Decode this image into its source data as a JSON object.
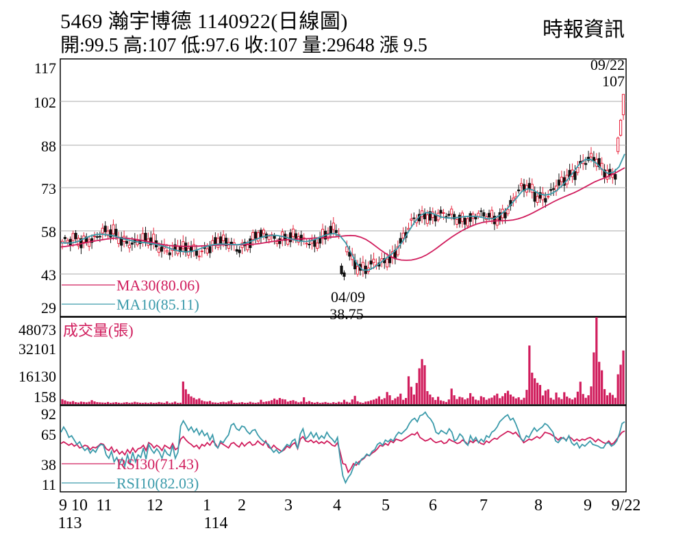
{
  "header": {
    "title": "5469  瀚宇博德 1140922(日線圖)",
    "stats": "開:99.5 高:107 低:97.6 收:107 量:29648 漲 9.5",
    "source": "時報資訊"
  },
  "colors": {
    "up": "#e8203a",
    "down": "#111111",
    "ma30": "#d01c5c",
    "ma10": "#3a9aaa",
    "volume": "#d01c5c",
    "rsi30": "#d01c5c",
    "rsi10": "#3a9aaa",
    "grid": "#aaaaaa"
  },
  "chart_data": [
    {
      "id": "price",
      "type": "candlestick",
      "y_ticks": [
        "117",
        "102",
        "88",
        "73",
        "58",
        "43",
        "29"
      ],
      "ylim": [
        29,
        117
      ],
      "grid": true,
      "legend": [
        {
          "label": "MA30(80.06)",
          "color": "#d01c5c"
        },
        {
          "label": "MA10(85.11)",
          "color": "#3a9aaa"
        }
      ],
      "annotations": [
        {
          "date": "09/22",
          "value": "107",
          "type": "high"
        },
        {
          "date": "04/09",
          "value": "38.75",
          "type": "low"
        }
      ],
      "series": [
        {
          "name": "MA30",
          "values": [
            51,
            51.2,
            51.5,
            51.8,
            52.2,
            52.6,
            53,
            53.3,
            53.6,
            53.9,
            54.1,
            54.3,
            54.3,
            54.2,
            54,
            53.7,
            53.4,
            53,
            52.6,
            52.2,
            51.9,
            51.6,
            51.4,
            51.3,
            51.2,
            51.2,
            51.3,
            51.3,
            51.4,
            51.5,
            51.6,
            51.7,
            51.8,
            51.8,
            51.8,
            51.8,
            51.8,
            51.9,
            52,
            52.2,
            52.5,
            52.8,
            53.1,
            53.4,
            53.6,
            53.7,
            53.8,
            53.9,
            54,
            54.1,
            54.3,
            54.4,
            54.5,
            54.6,
            54.7,
            54.9,
            55.1,
            55.2,
            55.1,
            54.6,
            53.8,
            52.6,
            51.2,
            49.8,
            48.5,
            47.4,
            46.6,
            46.2,
            46.1,
            46.2,
            46.6,
            47.2,
            48.1,
            49.3,
            50.6,
            52,
            53.4,
            54.7,
            55.9,
            57,
            58,
            58.8,
            59.5,
            60,
            60.3,
            60.5,
            60.6,
            60.6,
            60.7,
            60.9,
            61.3,
            61.9,
            62.7,
            63.6,
            64.6,
            65.6,
            66.6,
            67.6,
            68.5,
            69.3,
            70.1,
            70.9,
            71.8,
            72.8,
            73.8,
            74.8,
            75.6,
            76.3,
            77.1,
            78,
            79,
            80.06
          ]
        },
        {
          "name": "MA10",
          "values": [
            52.5,
            52.4,
            52.5,
            53,
            54,
            54.9,
            55.5,
            55.7,
            55.5,
            55.2,
            54.6,
            54,
            53.5,
            53,
            52.7,
            52.5,
            52.2,
            51.8,
            51.3,
            50.6,
            49.9,
            49.4,
            49.2,
            49.4,
            50,
            50.8,
            51.5,
            51.9,
            52.1,
            52,
            51.9,
            51.8,
            52.1,
            52.8,
            53.6,
            54.4,
            55,
            55.3,
            55.2,
            54.8,
            54.2,
            53.6,
            53.1,
            53,
            53.3,
            54.1,
            55,
            55.7,
            55.9,
            55.1,
            52.5,
            48.5,
            44.8,
            42.5,
            42.5,
            43.5,
            45,
            46.7,
            48.2,
            50.3,
            53,
            56.5,
            59.8,
            62.4,
            63.6,
            63.5,
            62.6,
            61.9,
            61.6,
            61.6,
            61.9,
            62.2,
            62.3,
            62.2,
            61.8,
            61.3,
            61.4,
            62.5,
            64.3,
            66.5,
            69,
            71.5,
            72.4,
            71.8,
            70.5,
            70,
            70.4,
            71.6,
            73.5,
            75.8,
            78.5,
            81.3,
            83,
            83.1,
            81.8,
            79.5,
            78,
            78.4,
            80.4,
            85.11
          ]
        }
      ]
    },
    {
      "id": "volume",
      "type": "bar",
      "title": "成交量(張)",
      "y_ticks": [
        "48073",
        "32101",
        "16130",
        "158"
      ],
      "ylim": [
        0,
        48073
      ],
      "values": [
        2700,
        2100,
        1500,
        1300,
        1700,
        1100,
        900,
        1400,
        1200,
        1000,
        1300,
        2200,
        1500,
        1100,
        1000,
        900,
        800,
        1200,
        700,
        900,
        1100,
        800,
        600,
        900,
        1100,
        700,
        900,
        1300,
        1000,
        800,
        700,
        900,
        600,
        1000,
        700,
        800,
        1200,
        900,
        700,
        1500,
        600,
        900,
        1400,
        700,
        800,
        12500,
        8200,
        5600,
        4300,
        3500,
        2600,
        3200,
        2100,
        1600,
        1400,
        1800,
        1000,
        900,
        700,
        1100,
        1300,
        1000,
        1600,
        2100,
        800,
        700,
        900,
        1100,
        700,
        800,
        1300,
        900,
        700,
        1000,
        2400,
        1200,
        1500,
        1700,
        2200,
        3100,
        2400,
        3400,
        2800,
        2600,
        1400,
        1900,
        2200,
        1600,
        1000,
        1400,
        3800,
        1200,
        1700,
        1100,
        800,
        1200,
        700,
        900,
        1200,
        800,
        600,
        1100,
        700,
        1300,
        1000,
        2400,
        1300,
        900,
        2600,
        4600,
        1600,
        1000,
        700,
        1400,
        1600,
        2100,
        2500,
        3100,
        4300,
        2600,
        3300,
        6700,
        4900,
        2200,
        3200,
        4100,
        5800,
        2400,
        3400,
        15400,
        9600,
        5300,
        11700,
        19800,
        24900,
        21500,
        7200,
        5300,
        3800,
        2300,
        4100,
        2100,
        1700,
        1200,
        2600,
        8600,
        4900,
        2800,
        4100,
        3700,
        2600,
        3300,
        6100,
        4200,
        2500,
        2100,
        4400,
        3800,
        2400,
        3200,
        3600,
        4800,
        5800,
        3300,
        4400,
        6100,
        7400,
        5300,
        4200,
        3200,
        3800,
        2400,
        3500,
        7900,
        32400,
        17400,
        14300,
        11800,
        10600,
        4800,
        7500,
        8200,
        3500,
        2500,
        6400,
        3700,
        2800,
        6600,
        4200,
        3300,
        2600,
        3600,
        6900,
        12400,
        5600,
        3500,
        4900,
        9800,
        28600,
        48073,
        23400,
        18700,
        8300,
        4900,
        6300,
        5100,
        3500,
        16500,
        21800,
        29648
      ]
    },
    {
      "id": "rsi",
      "type": "line",
      "y_ticks": [
        "92",
        "65",
        "38",
        "11"
      ],
      "ylim": [
        11,
        92
      ],
      "legend": [
        {
          "label": "RSI30(71.43)",
          "color": "#d01c5c"
        },
        {
          "label": "RSI10(82.03)",
          "color": "#3a9aaa"
        }
      ],
      "series": [
        {
          "name": "RSI30",
          "values": [
            57,
            59,
            57,
            55,
            57,
            54,
            56,
            52,
            53,
            55,
            54,
            50,
            53,
            52,
            54,
            57,
            56,
            51,
            49,
            53,
            47,
            50,
            45,
            48,
            44,
            50,
            46,
            52,
            47,
            51,
            52,
            55,
            49,
            58,
            56,
            52,
            55,
            53,
            49,
            55,
            53,
            51,
            57,
            50,
            52,
            62,
            65,
            61,
            58,
            56,
            53,
            55,
            51,
            56,
            54,
            58,
            55,
            60,
            57,
            52,
            58,
            56,
            54,
            52,
            57,
            58,
            55,
            53,
            58,
            54,
            57,
            59,
            55,
            56,
            60,
            57,
            55,
            60,
            53,
            51,
            55,
            52,
            50,
            48,
            50,
            54,
            52,
            56,
            58,
            51,
            62,
            65,
            60,
            59,
            61,
            58,
            60,
            57,
            59,
            57,
            60,
            58,
            55,
            54,
            58,
            47,
            34,
            33,
            24,
            28,
            34,
            32,
            36,
            38,
            40,
            44,
            43,
            46,
            48,
            51,
            55,
            54,
            57,
            55,
            60,
            58,
            62,
            61,
            60,
            62,
            64,
            66,
            68,
            67,
            70,
            64,
            62,
            60,
            61,
            63,
            60,
            58,
            59,
            60,
            57,
            58,
            62,
            60,
            59,
            57,
            58,
            61,
            59,
            56,
            60,
            58,
            61,
            59,
            57,
            56,
            60,
            58,
            61,
            63,
            62,
            65,
            67,
            69,
            71,
            70,
            68,
            70,
            66,
            63,
            58,
            60,
            62,
            61,
            63,
            65,
            63,
            66,
            70,
            69,
            68,
            66,
            64,
            61,
            64,
            63,
            61,
            65,
            63,
            60,
            62,
            60,
            62,
            61,
            63,
            64,
            62,
            59,
            62,
            60,
            58,
            57,
            60,
            56,
            58,
            62,
            66,
            70,
            71.43
          ]
        },
        {
          "name": "RSI10",
          "values": [
            70,
            76,
            71,
            64,
            66,
            61,
            56,
            59,
            53,
            49,
            52,
            46,
            50,
            47,
            53,
            56,
            55,
            44,
            40,
            48,
            36,
            41,
            33,
            40,
            31,
            44,
            34,
            47,
            36,
            44,
            41,
            52,
            39,
            56,
            50,
            46,
            51,
            47,
            40,
            50,
            45,
            43,
            55,
            40,
            47,
            77,
            83,
            78,
            72,
            76,
            70,
            74,
            67,
            72,
            66,
            69,
            61,
            67,
            55,
            52,
            60,
            58,
            63,
            67,
            78,
            80,
            74,
            72,
            77,
            76,
            71,
            68,
            72,
            73,
            67,
            63,
            60,
            58,
            56,
            51,
            47,
            50,
            46,
            48,
            52,
            56,
            54,
            60,
            62,
            51,
            68,
            74,
            62,
            65,
            70,
            64,
            69,
            62,
            66,
            63,
            70,
            65,
            62,
            58,
            64,
            40,
            20,
            12,
            18,
            22,
            30,
            36,
            33,
            39,
            41,
            45,
            43,
            48,
            50,
            56,
            58,
            55,
            61,
            59,
            62,
            60,
            66,
            70,
            68,
            71,
            74,
            80,
            84,
            86,
            82,
            89,
            90,
            93,
            88,
            85,
            80,
            70,
            68,
            72,
            70,
            68,
            74,
            70,
            60,
            62,
            68,
            65,
            58,
            55,
            66,
            60,
            64,
            58,
            62,
            59,
            66,
            64,
            70,
            72,
            76,
            82,
            85,
            88,
            90,
            84,
            86,
            80,
            72,
            62,
            60,
            66,
            64,
            70,
            75,
            71,
            74,
            76,
            80,
            78,
            74,
            70,
            60,
            58,
            62,
            64,
            60,
            66,
            58,
            55,
            58,
            52,
            56,
            54,
            57,
            60,
            56,
            55,
            54,
            52,
            52,
            57,
            58,
            54,
            56,
            60,
            68,
            80,
            82.03
          ]
        }
      ]
    }
  ],
  "x_axis": {
    "labels": [
      "9",
      "10",
      "11",
      "12",
      "1",
      "2",
      "3",
      "4",
      "5",
      "6",
      "7",
      "8",
      "9",
      "9/22"
    ],
    "year_labels": [
      "113",
      "114"
    ]
  }
}
